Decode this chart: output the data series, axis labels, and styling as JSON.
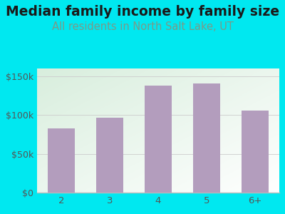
{
  "title": "Median family income by family size",
  "subtitle": "All residents in North Salt Lake, UT",
  "categories": [
    "2",
    "3",
    "4",
    "5",
    "6+"
  ],
  "values": [
    83000,
    97000,
    138000,
    141000,
    106000
  ],
  "bar_color": "#b39dbd",
  "title_fontsize": 13.5,
  "subtitle_fontsize": 10.5,
  "subtitle_color": "#7a9a88",
  "title_color": "#1a1a1a",
  "background_color": "#00e8f0",
  "plot_bg_topleft": "#d8eedd",
  "plot_bg_bottomright": "#ffffff",
  "ylim": [
    0,
    160000
  ],
  "yticks": [
    0,
    50000,
    100000,
    150000
  ],
  "ytick_labels": [
    "$0",
    "$50k",
    "$100k",
    "$150k"
  ],
  "tick_color": "#555555",
  "axis_color": "#bbbbbb",
  "grid_color": "#cccccc"
}
